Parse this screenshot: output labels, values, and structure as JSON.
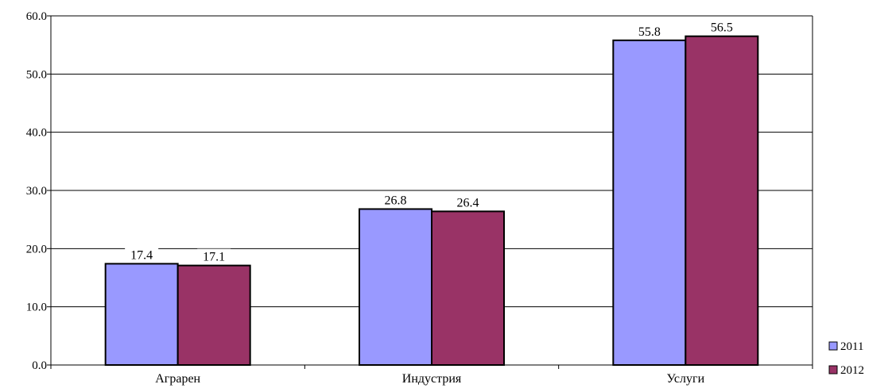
{
  "chart_data": {
    "type": "bar",
    "title": "",
    "xlabel": "",
    "ylabel": "",
    "categories": [
      "Аграрен",
      "Индустрия",
      "Услуги"
    ],
    "series": [
      {
        "name": "2011",
        "values": [
          17.4,
          26.8,
          55.8
        ],
        "color": "#9999ff"
      },
      {
        "name": "2012",
        "values": [
          17.1,
          26.4,
          56.5
        ],
        "color": "#993366"
      }
    ],
    "ylim": [
      0,
      60
    ],
    "yticks": [
      "0.0",
      "10.0",
      "20.0",
      "30.0",
      "40.0",
      "50.0",
      "60.0"
    ],
    "data_labels": [
      [
        "17.4",
        "26.8",
        "55.8"
      ],
      [
        "17.1",
        "26.4",
        "56.5"
      ]
    ],
    "grid": true,
    "legend": "bottom-right"
  }
}
